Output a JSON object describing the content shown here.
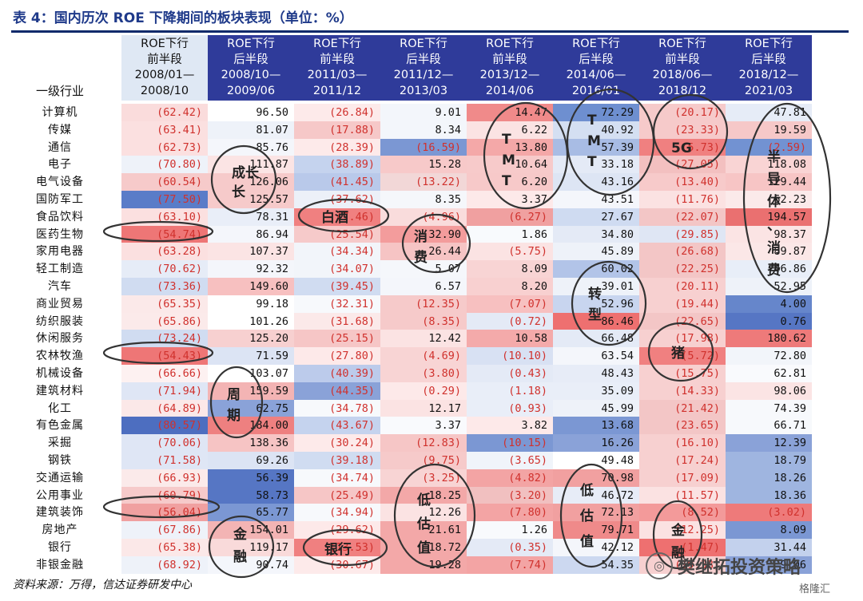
{
  "title": "表 4：国内历次 ROE 下降期间的板块表现（单位：%）",
  "header": {
    "industry": "一级行业",
    "columns": [
      {
        "line1": "ROE下行",
        "line2": "前半段",
        "line3": "2008/01—",
        "line4": "2008/10",
        "style": "light"
      },
      {
        "line1": "ROE下行",
        "line2": "后半段",
        "line3": "2008/10—",
        "line4": "2009/06",
        "style": "dark"
      },
      {
        "line1": "ROE下行",
        "line2": "前半段",
        "line3": "2011/03—",
        "line4": "2011/12",
        "style": "dark"
      },
      {
        "line1": "ROE下行",
        "line2": "后半段",
        "line3": "2011/12—",
        "line4": "2013/03",
        "style": "dark"
      },
      {
        "line1": "ROE下行",
        "line2": "前半段",
        "line3": "2013/12—",
        "line4": "2014/06",
        "style": "dark"
      },
      {
        "line1": "ROE下行",
        "line2": "后半段",
        "line3": "2014/06—",
        "line4": "2016/01",
        "style": "dark"
      },
      {
        "line1": "ROE下行",
        "line2": "前半段",
        "line3": "2018/06—",
        "line4": "2018/12",
        "style": "dark"
      },
      {
        "line1": "ROE下行",
        "line2": "后半段",
        "line3": "2018/12—",
        "line4": "2021/03",
        "style": "dark"
      }
    ]
  },
  "rows": [
    {
      "name": "计算机",
      "cells": [
        "(62.42)",
        "96.50",
        "(26.84)",
        "9.01",
        "14.47",
        "72.29",
        "(20.17)",
        "47.81"
      ],
      "colors": [
        "#fadcdc",
        "#ffffff",
        "#fdeaea",
        "#f3f6fb",
        "#f08a8a",
        "#6e8fd0",
        "#f6caca",
        "#e6ecf7"
      ]
    },
    {
      "name": "传媒",
      "cells": [
        "(63.41)",
        "81.07",
        "(17.88)",
        "8.34",
        "6.22",
        "40.92",
        "(23.33)",
        "19.59"
      ],
      "colors": [
        "#fbe0e0",
        "#eef2f9",
        "#f6c8c8",
        "#f3f6fb",
        "#fbe3e3",
        "#d4dff2",
        "#f6caca",
        "#f6c8c8"
      ]
    },
    {
      "name": "通信",
      "cells": [
        "(62.73)",
        "85.76",
        "(28.39)",
        "(16.59)",
        "13.80",
        "57.39",
        "(5.73)",
        "(2.59)"
      ],
      "colors": [
        "#fbe0e0",
        "#f4f6fb",
        "#fdeaea",
        "#7b97d3",
        "#f4a8a8",
        "#a8bce4",
        "#f08080",
        "#7292d2"
      ]
    },
    {
      "name": "电子",
      "cells": [
        "(70.80)",
        "111.87",
        "(38.89)",
        "15.28",
        "10.64",
        "33.18",
        "(27.05)",
        "118.08"
      ],
      "colors": [
        "#eef2f9",
        "#fbe4e4",
        "#c5d3ee",
        "#f7c9c9",
        "#f7caca",
        "#e4eaf6",
        "#f3c0c0",
        "#f9d4d4"
      ]
    },
    {
      "name": "电气设备",
      "cells": [
        "(60.54)",
        "126.06",
        "(41.45)",
        "(13.22)",
        "6.20",
        "43.16",
        "(13.40)",
        "129.44"
      ],
      "colors": [
        "#f6caca",
        "#f6caca",
        "#b9c9ea",
        "#f2d7d7",
        "#f7c9c9",
        "#dde5f4",
        "#f7caca",
        "#f7c5c5"
      ]
    },
    {
      "name": "国防军工",
      "cells": [
        "(77.50)",
        "125.57",
        "(37.62)",
        "8.35",
        "3.37",
        "43.51",
        "(11.76)",
        "62.23"
      ],
      "colors": [
        "#5a7cc8",
        "#f6caca",
        "#ecf0f8",
        "#f5f7fb",
        "#fde9e9",
        "#f4f6fb",
        "#fbe2e2",
        "#fbeaea"
      ]
    },
    {
      "name": "食品饮料",
      "cells": [
        "(63.10)",
        "78.31",
        "(7.46)",
        "(4.96)",
        "(6.27)",
        "27.67",
        "(22.07)",
        "194.57"
      ],
      "colors": [
        "#fbe0e0",
        "#e9eef8",
        "#f08080",
        "#f9dcdc",
        "#f0a0a0",
        "#cfdbf1",
        "#f3c6c6",
        "#ea7070"
      ]
    },
    {
      "name": "医药生物",
      "cells": [
        "(54.74)",
        "86.94",
        "(25.54)",
        "32.90",
        "1.86",
        "34.80",
        "(29.85)",
        "98.37"
      ],
      "colors": [
        "#ee7676",
        "#f4f6fb",
        "#f6caca",
        "#f39c9c",
        "#f8fafd",
        "#e4eaf6",
        "#dfe6f4",
        "#fbe4e4"
      ]
    },
    {
      "name": "家用电器",
      "cells": [
        "(63.28)",
        "107.37",
        "(34.34)",
        "26.44",
        "(5.75)",
        "45.89",
        "(26.68)",
        "89.87"
      ],
      "colors": [
        "#fbe0e0",
        "#fbe4e4",
        "#f2f5fa",
        "#f6c4c4",
        "#fbe3e3",
        "#eef2f9",
        "#f3c6c6",
        "#fbe7e7"
      ]
    },
    {
      "name": "轻工制造",
      "cells": [
        "(70.62)",
        "92.32",
        "(34.07)",
        "5.07",
        "8.09",
        "60.02",
        "(22.25)",
        "46.86"
      ],
      "colors": [
        "#e6ecf7",
        "#f4f6fb",
        "#f2f5fa",
        "#f5f7fb",
        "#f8d4d4",
        "#b2c4e8",
        "#f3c6c6",
        "#e8eef8"
      ]
    },
    {
      "name": "汽车",
      "cells": [
        "(73.36)",
        "149.60",
        "(39.45)",
        "6.57",
        "8.20",
        "39.01",
        "(20.11)",
        "52.95"
      ],
      "colors": [
        "#d0dcf1",
        "#f7c0c0",
        "#d0dcf1",
        "#f4f6fb",
        "#f8d0d0",
        "#eef2f9",
        "#f7d0d0",
        "#eef2f9"
      ]
    },
    {
      "name": "商业贸易",
      "cells": [
        "(65.35)",
        "99.18",
        "(32.31)",
        "(12.35)",
        "(7.07)",
        "52.96",
        "(19.44)",
        "4.00"
      ],
      "colors": [
        "#fbe9e9",
        "#ffffff",
        "#f7f9fc",
        "#f6caca",
        "#f7c0c0",
        "#c8d5ef",
        "#f7d0d0",
        "#6686cb"
      ]
    },
    {
      "name": "纺织服装",
      "cells": [
        "(65.86)",
        "101.26",
        "(31.68)",
        "(8.35)",
        "(0.72)",
        "86.46",
        "(22.65)",
        "0.76"
      ],
      "colors": [
        "#fbeaea",
        "#ffffff",
        "#fbe9e9",
        "#f6caca",
        "#e4eaf6",
        "#ee7070",
        "#f3c6c6",
        "#5676c4"
      ]
    },
    {
      "name": "休闲服务",
      "cells": [
        "(73.24)",
        "125.20",
        "(25.15)",
        "12.42",
        "10.58",
        "66.48",
        "(17.98)",
        "180.62"
      ],
      "colors": [
        "#d0dcf1",
        "#f7d0d0",
        "#f6c6c6",
        "#fbe3e3",
        "#f4aaaa",
        "#e4eaf6",
        "#f7d0d0",
        "#ee7a7a"
      ]
    },
    {
      "name": "农林牧渔",
      "cells": [
        "(54.43)",
        "71.59",
        "(27.80)",
        "(4.69)",
        "(10.10)",
        "63.54",
        "(5.72)",
        "72.80"
      ],
      "colors": [
        "#ee7676",
        "#dce4f4",
        "#fde9e9",
        "#f8d4d4",
        "#d8e1f3",
        "#f4f6fb",
        "#f08080",
        "#f2f5fa"
      ]
    },
    {
      "name": "机械设备",
      "cells": [
        "(66.66)",
        "103.07",
        "(40.39)",
        "(3.80)",
        "(0.43)",
        "48.43",
        "(15.75)",
        "62.81"
      ],
      "colors": [
        "#fdf1f1",
        "#ffffff",
        "#bccbeb",
        "#f8d4d4",
        "#e4eaf6",
        "#e7ecf7",
        "#f7d0d0",
        "#f9fafd"
      ]
    },
    {
      "name": "建筑材料",
      "cells": [
        "(71.94)",
        "159.59",
        "(44.35)",
        "(0.29)",
        "(1.18)",
        "35.09",
        "(14.33)",
        "98.06"
      ],
      "colors": [
        "#dfe6f5",
        "#f3b4b4",
        "#8aa2d8",
        "#fde9e9",
        "#e9eef8",
        "#e9eef8",
        "#f7d0d0",
        "#fbe4e4"
      ]
    },
    {
      "name": "化工",
      "cells": [
        "(64.89)",
        "62.75",
        "(34.78)",
        "12.17",
        "(0.93)",
        "45.99",
        "(21.42)",
        "74.39"
      ],
      "colors": [
        "#fbe8e8",
        "#8aa2d8",
        "#f7f9fc",
        "#fbe3e3",
        "#e9eef8",
        "#eef2f9",
        "#f3c6c6",
        "#f7f9fc"
      ]
    },
    {
      "name": "有色金属",
      "cells": [
        "(80.57)",
        "184.00",
        "(43.67)",
        "3.37",
        "3.82",
        "13.68",
        "(23.65)",
        "66.71"
      ],
      "colors": [
        "#4d6ec0",
        "#ee8080",
        "#c5d3ee",
        "#f9fafd",
        "#fde9e9",
        "#7b97d3",
        "#f3c6c6",
        "#f7f9fc"
      ]
    },
    {
      "name": "采掘",
      "cells": [
        "(70.06)",
        "138.36",
        "(30.24)",
        "(12.83)",
        "(10.15)",
        "16.26",
        "(16.10)",
        "12.39"
      ],
      "colors": [
        "#dfe6f5",
        "#f6c4c4",
        "#fdeaea",
        "#f6c6c6",
        "#7b97d3",
        "#8aa2d8",
        "#f7d0d0",
        "#8aa2d8"
      ]
    },
    {
      "name": "钢铁",
      "cells": [
        "(71.58)",
        "69.26",
        "(39.18)",
        "(9.75)",
        "(3.65)",
        "49.48",
        "(17.24)",
        "18.79"
      ],
      "colors": [
        "#dfe6f5",
        "#dce4f4",
        "#d0dcf1",
        "#f6caca",
        "#f0f4fa",
        "#ffffff",
        "#f7d0d0",
        "#9fb5e0"
      ]
    },
    {
      "name": "交通运输",
      "cells": [
        "(66.93)",
        "56.39",
        "(34.74)",
        "(3.25)",
        "(4.82)",
        "70.98",
        "(17.09)",
        "18.26"
      ],
      "colors": [
        "#fbeaea",
        "#5676c4",
        "#f7f9fc",
        "#f8d4d4",
        "#f3a4a4",
        "#f1a0a0",
        "#f7d0d0",
        "#9fb5e0"
      ]
    },
    {
      "name": "公用事业",
      "cells": [
        "(60.79)",
        "58.73",
        "(25.49)",
        "18.25",
        "(3.20)",
        "46.72",
        "(11.57)",
        "18.36"
      ],
      "colors": [
        "#f6caca",
        "#5676c4",
        "#f6c6c6",
        "#f3a8a8",
        "#f1c0c0",
        "#e7ecf7",
        "#fbe2e2",
        "#9fb5e0"
      ]
    },
    {
      "name": "建筑装饰",
      "cells": [
        "(56.04)",
        "65.77",
        "(34.94)",
        "12.26",
        "(7.80)",
        "72.13",
        "(8.52)",
        "(3.02)"
      ],
      "colors": [
        "#f0a0a0",
        "#7b97d3",
        "#f7f9fc",
        "#fbe3e3",
        "#f3a4a4",
        "#f1a0a0",
        "#f39a9a",
        "#ee7a7a"
      ]
    },
    {
      "name": "房地产",
      "cells": [
        "(67.86)",
        "154.01",
        "(29.62)",
        "21.61",
        "1.26",
        "79.71",
        "(12.25)",
        "8.09"
      ],
      "colors": [
        "#eef2f9",
        "#f3b4b4",
        "#fde9e9",
        "#f3a8a8",
        "#f8fafd",
        "#ef8a8a",
        "#fbe2e2",
        "#7b97d3"
      ]
    },
    {
      "name": "银行",
      "cells": [
        "(65.38)",
        "119.17",
        "(13.53)",
        "18.72",
        "(0.35)",
        "42.12",
        "(1.47)",
        "31.44"
      ],
      "colors": [
        "#fbe8e8",
        "#f9dada",
        "#f08080",
        "#f3a8a8",
        "#e4eaf6",
        "#f4f6fb",
        "#ee7070",
        "#c3d1ed"
      ]
    },
    {
      "name": "非银金融",
      "cells": [
        "(68.92)",
        "90.74",
        "(30.67)",
        "19.28",
        "(7.74)",
        "54.35",
        "(19.38)",
        "9.06"
      ],
      "colors": [
        "#eef2f9",
        "#f4f6fb",
        "#fdeaea",
        "#f3a8a8",
        "#f3a4a4",
        "#ccd8f0",
        "#f7d0d0",
        "#8aa2d8"
      ]
    }
  ],
  "annotations": {
    "chengzhang": "成长",
    "baijiu": "白酒",
    "xiaofei_1": "消费",
    "tmt_1": [
      "T",
      "M",
      "T"
    ],
    "tmt_2": [
      "T",
      "M",
      "T"
    ],
    "tag_5g": "5G",
    "bandaoti_xiaofei": [
      "半",
      "导",
      "体",
      "、",
      "消",
      "费"
    ],
    "zhuanxing": "转型",
    "zhu": "猪",
    "zhouqi": "周期",
    "digu_1": "低估值",
    "digu_2": "低估值",
    "jinrong_1": "金融",
    "jinrong_2": "金融",
    "yinhang": "银行"
  },
  "source": "资料来源：万得，信达证券研发中心",
  "watermark": "樊继拓投资策略",
  "watermark_icon": "wechat-icon",
  "gelonghui": "格隆汇"
}
